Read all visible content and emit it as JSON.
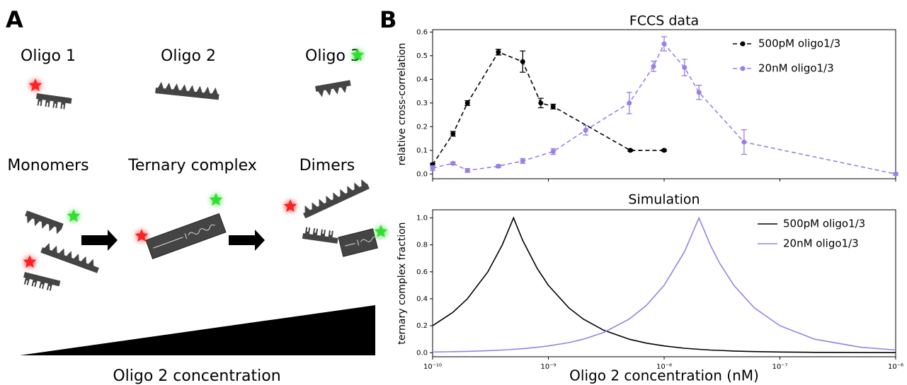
{
  "panel_a": {
    "label": "A",
    "oligo_labels": [
      "Oligo 1",
      "Oligo 2",
      "Oligo 3"
    ],
    "state_labels": [
      "Monomers",
      "Ternary complex",
      "Dimers"
    ],
    "axis_label": "Oligo 2 concentration"
  },
  "panel_b_label": "B",
  "chart_data": [
    {
      "type": "line",
      "title": "FCCS data",
      "y_label": "relative cross-correlation",
      "xscale": "log",
      "xlim": [
        1e-10,
        1e-06
      ],
      "xticks": [
        1e-10,
        1e-09,
        1e-08,
        1e-07,
        1e-06
      ],
      "ylim": [
        -0.02,
        0.61
      ],
      "yticks": [
        {
          "value": 0,
          "label": "0.0"
        },
        0.1,
        0.2,
        0.3,
        0.4,
        0.5,
        0.6
      ],
      "legend": "upper right",
      "linestyle": "dashed",
      "markers": true,
      "series": [
        {
          "name": "500pM oligo1/3",
          "color": "#000000",
          "x": [
            1e-10,
            1.5e-10,
            2e-10,
            3.7e-10,
            6e-10,
            8.6e-10,
            1.1e-09,
            5.1e-09,
            1e-08
          ],
          "values": [
            0.04,
            0.17,
            0.3,
            0.515,
            0.475,
            0.3,
            0.285,
            0.1,
            0.1
          ],
          "errors": [
            0.005,
            0.01,
            0.01,
            0.012,
            0.045,
            0.02,
            0.01,
            0.004,
            0.004
          ]
        },
        {
          "name": "20nM oligo1/3",
          "color": "#9a7fe6",
          "x": [
            1e-10,
            1.5e-10,
            2e-10,
            3.7e-10,
            6e-10,
            1.1e-09,
            2.1e-09,
            5e-09,
            8.1e-09,
            1e-08,
            1.5e-08,
            2e-08,
            4.9e-08,
            1e-06
          ],
          "values": [
            0.025,
            0.045,
            0.015,
            0.033,
            0.055,
            0.095,
            0.185,
            0.3,
            0.455,
            0.55,
            0.45,
            0.345,
            0.135,
            0.0
          ],
          "errors": [
            0.01,
            0.006,
            0.008,
            0.006,
            0.01,
            0.012,
            0.02,
            0.045,
            0.022,
            0.03,
            0.035,
            0.03,
            0.052,
            0.005
          ]
        }
      ]
    },
    {
      "type": "line",
      "title": "Simulation",
      "y_label": "ternary complex fraction",
      "x_label": "Oligo 2 concentration (nM)",
      "xscale": "log",
      "xlim": [
        1e-10,
        1e-06
      ],
      "xticks": [
        {
          "value": 1e-10,
          "label": "10⁻¹⁰"
        },
        {
          "value": 1e-09,
          "label": "10⁻⁹"
        },
        {
          "value": 1e-08,
          "label": "10⁻⁸"
        },
        {
          "value": 1e-07,
          "label": "10⁻⁷"
        },
        {
          "value": 1e-06,
          "label": "10⁻⁶"
        }
      ],
      "ylim": [
        -0.03,
        1.06
      ],
      "yticks": [
        {
          "value": 0,
          "label": "0.0"
        },
        0.2,
        0.4,
        0.6,
        0.8,
        {
          "value": 1,
          "label": "1.0"
        }
      ],
      "legend": "upper right",
      "linestyle": "solid",
      "markers": false,
      "x": [
        1e-10,
        1.5e-10,
        2e-10,
        3e-10,
        4e-10,
        5e-10,
        6e-10,
        8e-10,
        1e-09,
        1.5e-09,
        2e-09,
        3e-09,
        5e-09,
        7e-09,
        1e-08,
        1.5e-08,
        2e-08,
        2.5e-08,
        3e-08,
        4e-08,
        6e-08,
        1e-07,
        2e-07,
        5e-07,
        1e-06
      ],
      "series": [
        {
          "name": "500pM oligo1/3",
          "color": "#000000",
          "values": [
            0.2,
            0.3,
            0.4,
            0.6,
            0.8,
            1.0,
            0.833,
            0.625,
            0.5,
            0.333,
            0.25,
            0.167,
            0.1,
            0.071,
            0.05,
            0.033,
            0.025,
            0.02,
            0.017,
            0.0125,
            0.008,
            0.005,
            0.0025,
            0.001,
            0.0005
          ]
        },
        {
          "name": "20nM oligo1/3",
          "color": "#9a7fe6",
          "values": [
            0.005,
            0.0075,
            0.01,
            0.015,
            0.02,
            0.025,
            0.03,
            0.04,
            0.05,
            0.075,
            0.1,
            0.15,
            0.25,
            0.35,
            0.5,
            0.75,
            1.0,
            0.8,
            0.667,
            0.5,
            0.333,
            0.2,
            0.1,
            0.04,
            0.02
          ]
        }
      ]
    }
  ]
}
